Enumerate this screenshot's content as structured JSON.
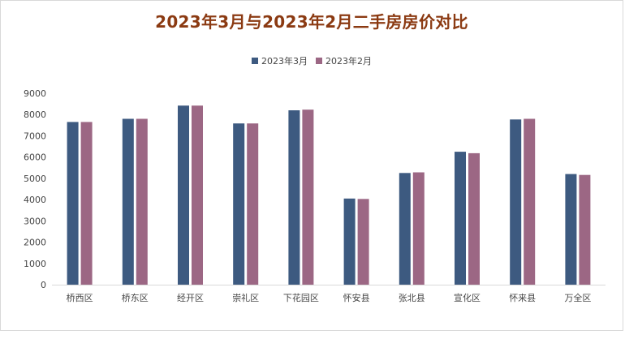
{
  "chart_data": {
    "type": "bar",
    "title": "2023年3月与2023年2月二手房房价对比",
    "xlabel": "",
    "ylabel": "",
    "ylim": [
      0,
      9000
    ],
    "yticks": [
      0,
      1000,
      2000,
      3000,
      4000,
      5000,
      6000,
      7000,
      8000,
      9000
    ],
    "grid": false,
    "legend_position": "top-center",
    "categories": [
      "桥西区",
      "桥东区",
      "经开区",
      "崇礼区",
      "下花园区",
      "怀安县",
      "张北县",
      "宣化区",
      "怀来县",
      "万全区"
    ],
    "series": [
      {
        "name": "2023年3月",
        "color": "#3d5a80",
        "values": [
          7650,
          7800,
          8420,
          7580,
          8200,
          4050,
          5250,
          6250,
          7770,
          5200
        ]
      },
      {
        "name": "2023年2月",
        "color": "#9c6784",
        "values": [
          7650,
          7800,
          8420,
          7580,
          8230,
          4030,
          5280,
          6180,
          7800,
          5160
        ]
      }
    ]
  }
}
